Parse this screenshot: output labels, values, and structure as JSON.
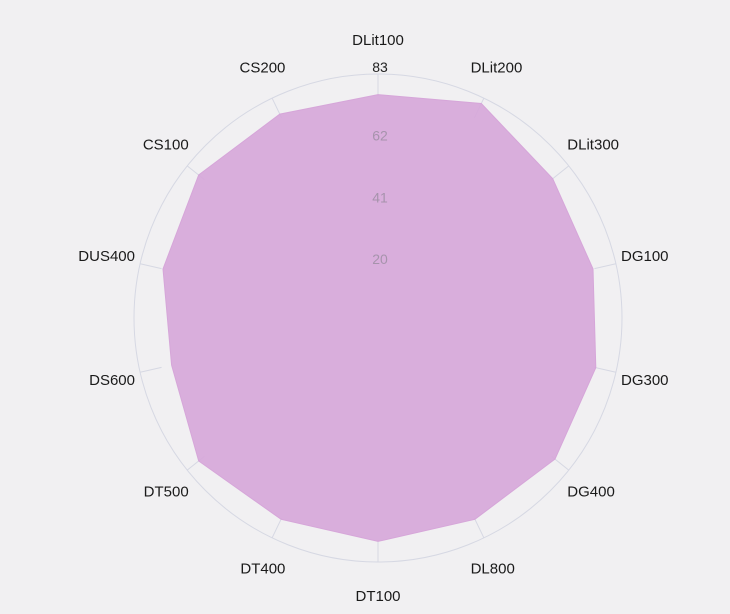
{
  "chart_data": {
    "type": "radar",
    "title": "",
    "categories": [
      "DLit100",
      "DLit200",
      "DLit300",
      "DG100",
      "DG300",
      "DG400",
      "DL800",
      "DT100",
      "DT400",
      "DT500",
      "DS600",
      "DUS400",
      "CS100",
      "CS200"
    ],
    "series": [
      {
        "values": [
          76,
          81,
          76,
          75,
          76,
          77,
          76,
          76,
          76,
          78,
          72,
          75,
          78,
          77
        ]
      }
    ],
    "radial_ticks": [
      20,
      41,
      62,
      83
    ],
    "rmax": 83,
    "grid": true,
    "colors": {
      "fill": "#d6a6d9",
      "grid": "#d6d8e3",
      "background": "#f1f0f2"
    }
  }
}
